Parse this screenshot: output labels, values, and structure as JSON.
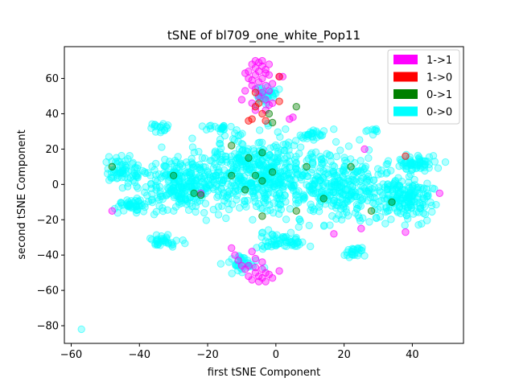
{
  "chart_data": {
    "type": "scatter",
    "title": "tSNE of bl709_one_white_Pop11",
    "xlabel": "first tSNE Component",
    "ylabel": "second tSNE Component",
    "xlim": [
      -62,
      55
    ],
    "ylim": [
      -90,
      78
    ],
    "xticks": [
      -60,
      -40,
      -20,
      0,
      20,
      40
    ],
    "yticks": [
      -80,
      -60,
      -40,
      -20,
      0,
      20,
      40,
      60
    ],
    "xtick_labels": [
      "−60",
      "−40",
      "−20",
      "0",
      "20",
      "40"
    ],
    "ytick_labels": [
      "−80",
      "−60",
      "−40",
      "−20",
      "0",
      "20",
      "40",
      "60"
    ],
    "grid": false,
    "legend_position": "top-right",
    "series": [
      {
        "name": "1->1",
        "color": "#ff00ff",
        "values": [
          [
            -7,
            68
          ],
          [
            -6,
            66
          ],
          [
            -5,
            69
          ],
          [
            -4,
            67
          ],
          [
            -3,
            65
          ],
          [
            -8,
            64
          ],
          [
            -6,
            62
          ],
          [
            -4,
            60
          ],
          [
            -2,
            62
          ],
          [
            -5,
            58
          ],
          [
            -3,
            56
          ],
          [
            -7,
            56
          ],
          [
            -1,
            57
          ],
          [
            -6,
            54
          ],
          [
            -4,
            52
          ],
          [
            -2,
            53
          ],
          [
            -8,
            60
          ],
          [
            -9,
            63
          ],
          [
            -3,
            63
          ],
          [
            -5,
            64
          ],
          [
            -6,
            70
          ],
          [
            -4,
            70
          ],
          [
            -2,
            68
          ],
          [
            -7,
            59
          ],
          [
            1,
            61
          ],
          [
            2,
            61
          ],
          [
            -10,
            48
          ],
          [
            -9,
            53
          ],
          [
            -5,
            50
          ],
          [
            -7,
            46
          ],
          [
            -3,
            48
          ],
          [
            -1,
            46
          ],
          [
            -6,
            42
          ],
          [
            -3,
            42
          ],
          [
            4,
            37
          ],
          [
            5,
            38
          ],
          [
            -5,
            -52
          ],
          [
            -4,
            -53
          ],
          [
            -6,
            -50
          ],
          [
            -3,
            -50
          ],
          [
            -7,
            -54
          ],
          [
            -5,
            -55
          ],
          [
            -4,
            -48
          ],
          [
            -9,
            -48
          ],
          [
            -10,
            -46
          ],
          [
            -8,
            -46
          ],
          [
            -12,
            -40
          ],
          [
            -11,
            -43
          ],
          [
            -6,
            -42
          ],
          [
            -7,
            -38
          ],
          [
            -13,
            -36
          ],
          [
            -2,
            -51
          ],
          [
            26,
            20
          ],
          [
            -48,
            -15
          ],
          [
            38,
            -27
          ],
          [
            48,
            -5
          ],
          [
            -22,
            -5
          ],
          [
            25,
            -25
          ],
          [
            17,
            -28
          ],
          [
            -2,
            45
          ],
          [
            -8,
            -52
          ],
          [
            -3,
            -55
          ],
          [
            -6,
            -47
          ],
          [
            -4,
            -44
          ],
          [
            -1,
            -53
          ],
          [
            1,
            -49
          ]
        ]
      },
      {
        "name": "1->0",
        "color": "#ff0000",
        "values": [
          [
            -7,
            37
          ],
          [
            -8,
            36
          ],
          [
            -3,
            36
          ],
          [
            -5,
            46
          ],
          [
            -6,
            44
          ],
          [
            1,
            61
          ],
          [
            38,
            16
          ],
          [
            1,
            47
          ],
          [
            -6,
            52
          ],
          [
            -4,
            40
          ]
        ]
      },
      {
        "name": "0->1",
        "color": "#008000",
        "values": [
          [
            6,
            44
          ],
          [
            -1,
            35
          ],
          [
            -4,
            18
          ],
          [
            -13,
            22
          ],
          [
            -8,
            15
          ],
          [
            -6,
            5
          ],
          [
            -1,
            7
          ],
          [
            9,
            10
          ],
          [
            -13,
            5
          ],
          [
            -24,
            -5
          ],
          [
            -22,
            -6
          ],
          [
            -48,
            10
          ],
          [
            22,
            10
          ],
          [
            34,
            -10
          ],
          [
            -4,
            -18
          ],
          [
            6,
            -15
          ],
          [
            -4,
            2
          ],
          [
            -2,
            40
          ],
          [
            -9,
            -3
          ],
          [
            28,
            -15
          ],
          [
            -30,
            5
          ],
          [
            14,
            -8
          ]
        ]
      },
      {
        "name": "0->0",
        "color": "#00ffff",
        "values": []
      }
    ]
  }
}
